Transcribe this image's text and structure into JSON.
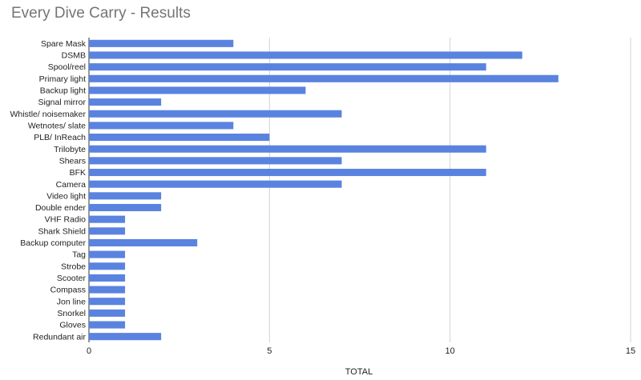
{
  "chart_data": {
    "type": "bar",
    "orientation": "horizontal",
    "title": "Every Dive Carry - Results",
    "xlabel": "TOTAL",
    "ylabel": "",
    "xlim": [
      0,
      15
    ],
    "xticks": [
      0,
      5,
      10,
      15
    ],
    "grid": true,
    "legend": "none",
    "bar_color": "#5a83e0",
    "categories": [
      "Spare Mask",
      "DSMB",
      "Spool/reel",
      "Primary light",
      "Backup light",
      "Signal mirror",
      "Whistle/ noisemaker",
      "Wetnotes/ slate",
      "PLB/ InReach",
      "Trilobyte",
      "Shears",
      "BFK",
      "Camera",
      "Video light",
      "Double ender",
      "VHF Radio",
      "Shark Shield",
      "Backup computer",
      "Tag",
      "Strobe",
      "Scooter",
      "Compass",
      "Jon line",
      "Snorkel",
      "Gloves",
      "Redundant air"
    ],
    "values": [
      4,
      12,
      11,
      13,
      6,
      2,
      7,
      4,
      5,
      11,
      7,
      11,
      7,
      2,
      2,
      1,
      1,
      3,
      1,
      1,
      1,
      1,
      1,
      1,
      1,
      2
    ]
  }
}
